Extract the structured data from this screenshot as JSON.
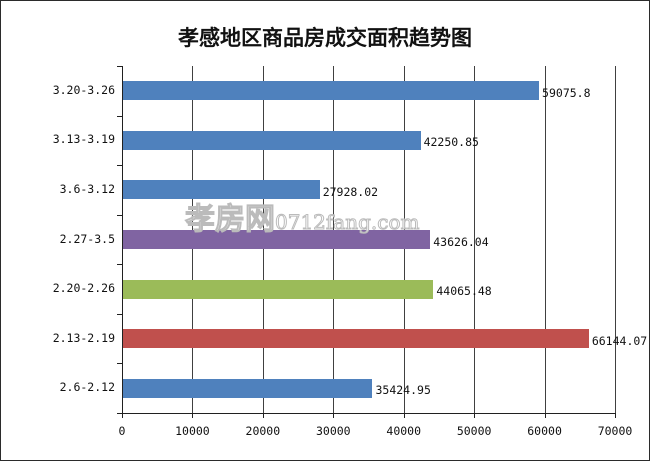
{
  "chart_data": {
    "type": "bar",
    "orientation": "horizontal",
    "title": "孝感地区商品房成交面积趋势图",
    "xlabel": "",
    "ylabel": "",
    "xlim": [
      0,
      70000
    ],
    "x_ticks": [
      "0",
      "10000",
      "20000",
      "30000",
      "40000",
      "50000",
      "60000",
      "70000"
    ],
    "grid": "vertical",
    "legend": "none",
    "categories": [
      "3.20-3.26",
      "3.13-3.19",
      "3.6-3.12",
      "2.27-3.5",
      "2.20-2.26",
      "2.13-2.19",
      "2.6-2.12"
    ],
    "values": [
      59075.8,
      42250.85,
      27928.02,
      43626.04,
      44065.48,
      66144.07,
      35424.95
    ],
    "value_labels": [
      "59075.8",
      "42250.85",
      "27928.02",
      "43626.04",
      "44065.48",
      "66144.07",
      "35424.95"
    ],
    "bar_colors": [
      "#4f81bd",
      "#4f81bd",
      "#4f81bd",
      "#8064a2",
      "#9bbb59",
      "#c0504d",
      "#4f81bd"
    ]
  },
  "watermark": {
    "brand": "孝房网",
    "url": "0712fang.com"
  }
}
